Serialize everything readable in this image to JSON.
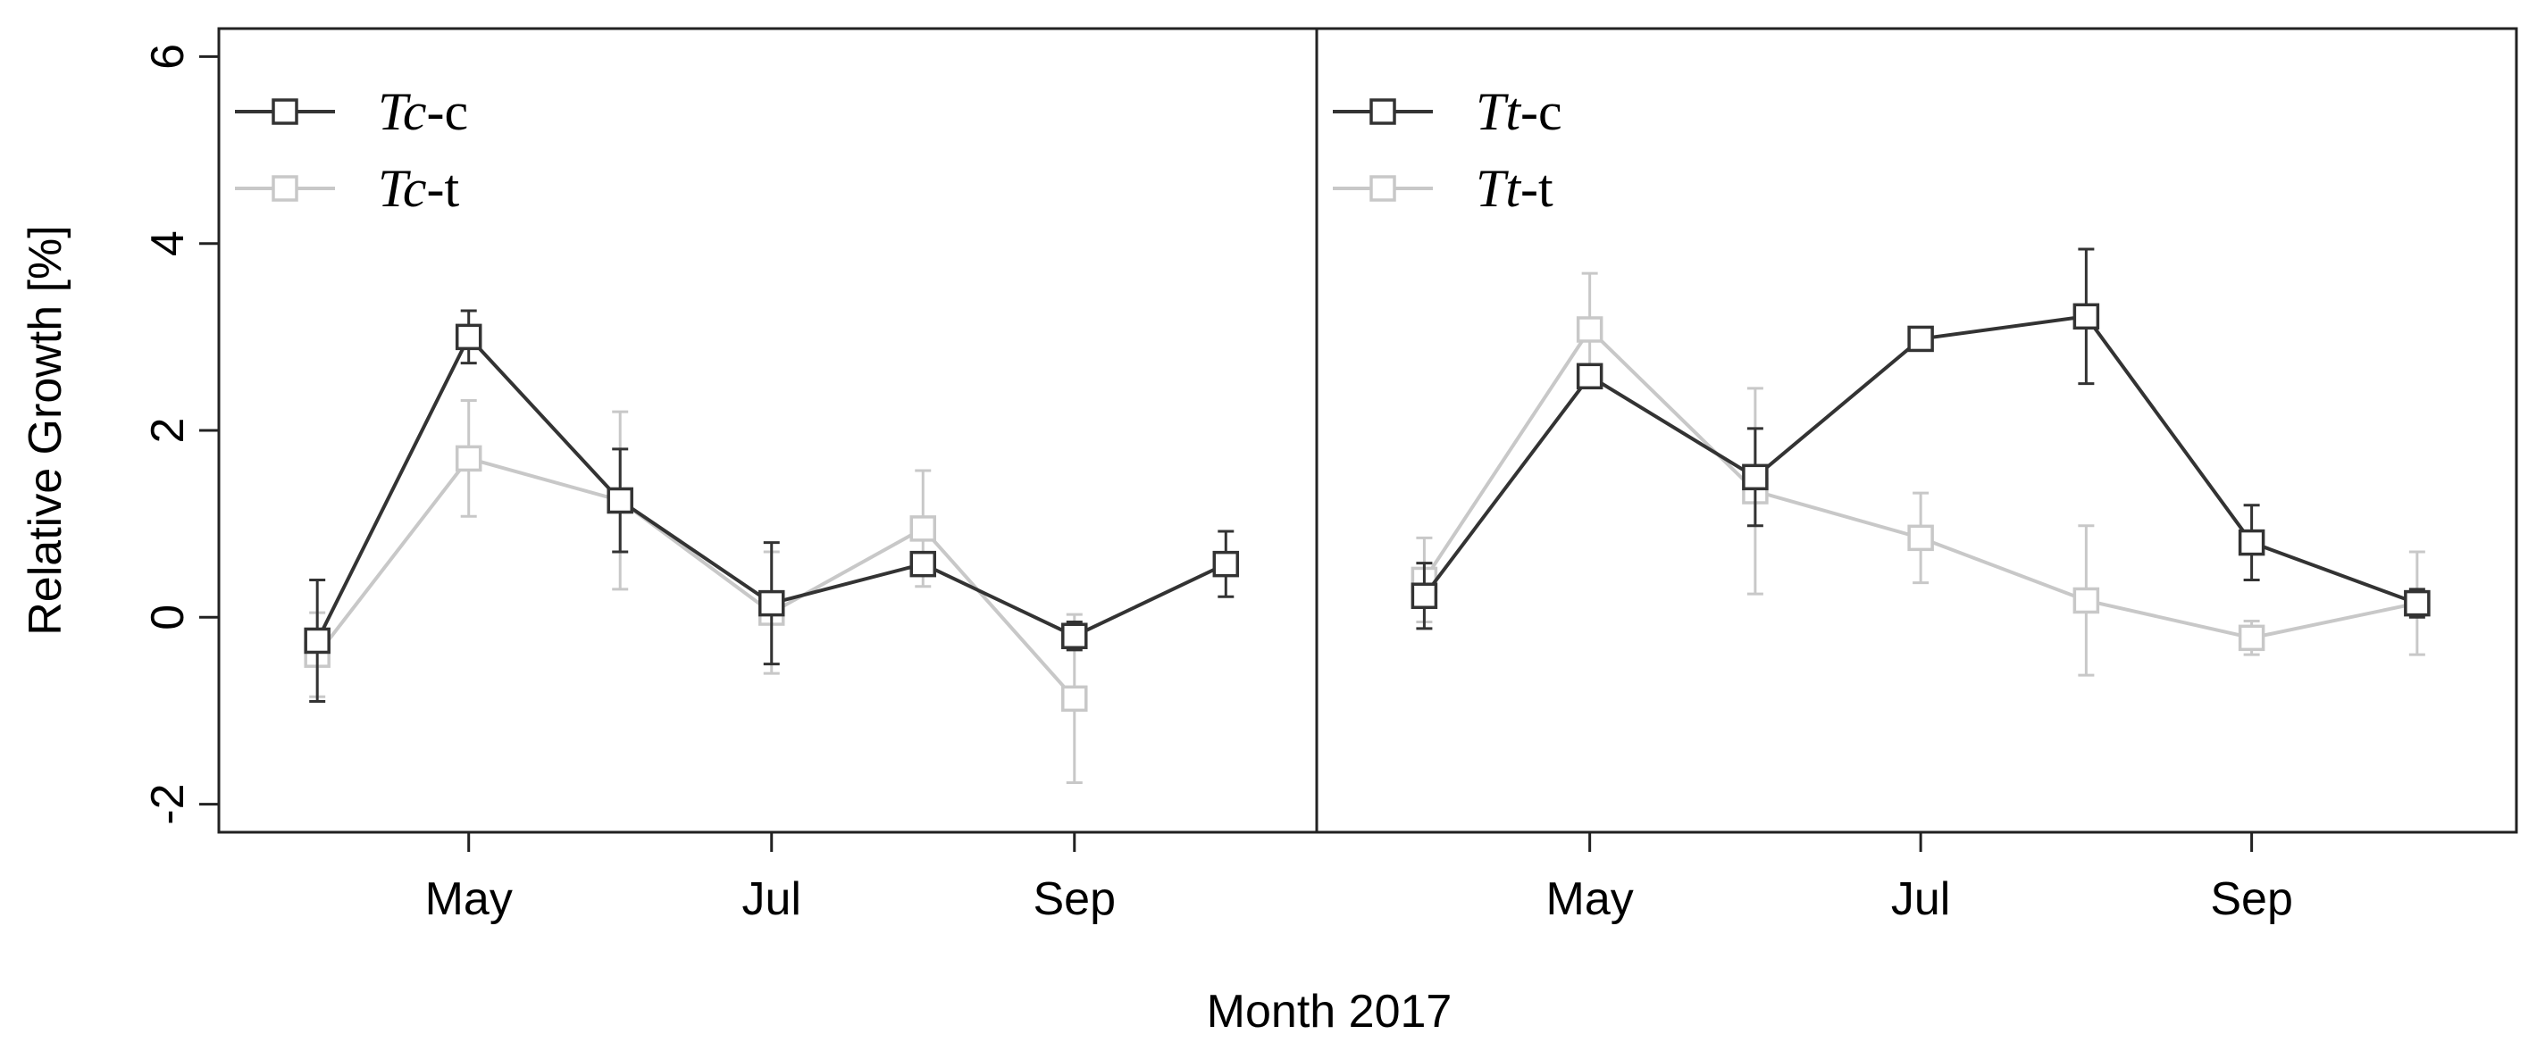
{
  "chart_data": {
    "type": "line",
    "xlabel": "Month 2017",
    "ylabel": "Relative Growth [%]",
    "ylim": [
      -2.3,
      6.3
    ],
    "yticks": [
      -2,
      0,
      2,
      4,
      6
    ],
    "ytick_labels": [
      "-2",
      "0",
      "2",
      "4",
      "6"
    ],
    "xlim": [
      3.35,
      10.6
    ],
    "x_ticks": [
      {
        "x": 5,
        "label": "May"
      },
      {
        "x": 7,
        "label": "Jul"
      },
      {
        "x": 9,
        "label": "Sep"
      }
    ],
    "panels": [
      {
        "name": "Tc",
        "legend_position": "top-left",
        "series": [
          {
            "name": "Tc-c",
            "legend_prefix": "Tc",
            "legend_suffix": "-c",
            "color": "#333333",
            "x": [
              4,
              5,
              6,
              7,
              8,
              9,
              10
            ],
            "y": [
              -0.25,
              3.0,
              1.25,
              0.15,
              0.57,
              -0.2,
              0.57
            ],
            "err": [
              0.65,
              0.28,
              0.55,
              0.65,
              0.12,
              0.15,
              0.35
            ]
          },
          {
            "name": "Tc-t",
            "legend_prefix": "Tc",
            "legend_suffix": "-t",
            "color": "#c8c8c8",
            "x": [
              4,
              5,
              6,
              7,
              8,
              9
            ],
            "y": [
              -0.4,
              1.7,
              1.25,
              0.05,
              0.95,
              -0.87
            ],
            "err": [
              0.45,
              0.62,
              0.95,
              0.65,
              0.62,
              0.9
            ]
          }
        ]
      },
      {
        "name": "Tt",
        "legend_position": "top-left",
        "series": [
          {
            "name": "Tt-c",
            "legend_prefix": "Tt",
            "legend_suffix": "-c",
            "color": "#333333",
            "x": [
              4,
              5,
              6,
              7,
              8,
              9,
              10
            ],
            "y": [
              0.23,
              2.58,
              1.5,
              2.98,
              3.22,
              0.8,
              0.15
            ],
            "err": [
              0.35,
              0.12,
              0.52,
              0.1,
              0.72,
              0.4,
              0.15
            ]
          },
          {
            "name": "Tt-t",
            "legend_prefix": "Tt",
            "legend_suffix": "-t",
            "color": "#c8c8c8",
            "x": [
              4,
              5,
              6,
              7,
              8,
              9,
              10
            ],
            "y": [
              0.4,
              3.08,
              1.35,
              0.85,
              0.18,
              -0.22,
              0.15
            ],
            "err": [
              0.45,
              0.6,
              1.1,
              0.48,
              0.8,
              0.18,
              0.55
            ]
          }
        ]
      }
    ]
  }
}
